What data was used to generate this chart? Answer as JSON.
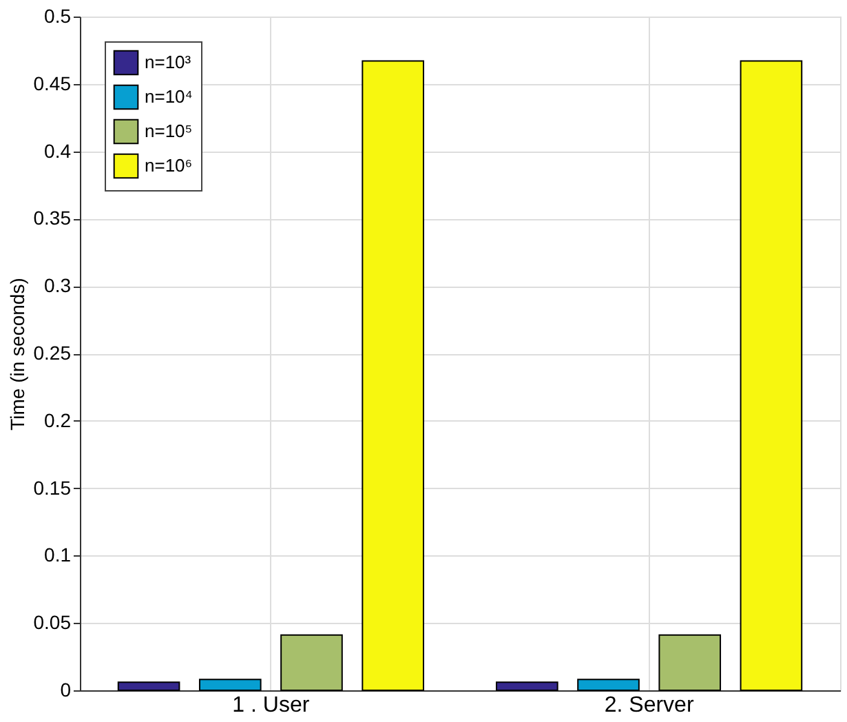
{
  "chart_data": {
    "type": "bar",
    "ylabel": "Time (in seconds)",
    "categories": [
      "1 . User",
      "2. Server"
    ],
    "series": [
      {
        "name": "n=10³",
        "color": "#35288c",
        "values": [
          0.006,
          0.006
        ]
      },
      {
        "name": "n=10⁴",
        "color": "#079fd1",
        "values": [
          0.008,
          0.008
        ]
      },
      {
        "name": "n=10⁵",
        "color": "#a7bf6b",
        "values": [
          0.041,
          0.041
        ]
      },
      {
        "name": "n=10⁶",
        "color": "#f7f70f",
        "values": [
          0.467,
          0.467
        ]
      }
    ],
    "ylim": [
      0,
      0.5
    ],
    "yticks": [
      0,
      0.05,
      0.1,
      0.15,
      0.2,
      0.25,
      0.3,
      0.35,
      0.4,
      0.45,
      0.5
    ],
    "grid": true,
    "legend": "top left"
  }
}
